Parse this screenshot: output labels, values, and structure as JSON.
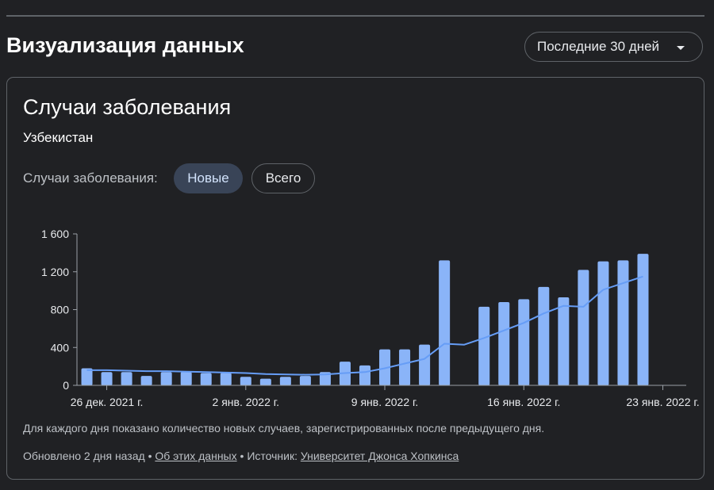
{
  "header": {
    "title": "Визуализация данных",
    "range_select": "Последние 30 дней"
  },
  "card": {
    "title": "Случаи заболевания",
    "subtitle": "Узбекистан",
    "toggle_label": "Случаи заболевания:",
    "toggle_options": [
      "Новые",
      "Всего"
    ],
    "toggle_selected": "Новые",
    "note": "Для каждого дня показано количество новых случаев, зарегистрированных после предыдущего дня.",
    "footer": {
      "updated": "Обновлено 2 дня назад",
      "sep": " • ",
      "about_link": "Об этих данных",
      "source_label": "Источник:",
      "source_link": "Университет Джонса Хопкинса"
    }
  },
  "colors": {
    "bar": "#8ab4f8",
    "line": "#669df6",
    "axis": "#9aa0a6"
  },
  "chart_data": {
    "type": "bar",
    "y_tick_labels": [
      "0",
      "400",
      "800",
      "1 200",
      "1 600"
    ],
    "y_ticks": [
      0,
      400,
      800,
      1200,
      1600
    ],
    "ylim": [
      0,
      1600
    ],
    "x_tick_labels": [
      "26 дек. 2021 г.",
      "2 янв. 2022 г.",
      "9 янв. 2022 г.",
      "16 янв. 2022 г.",
      "23 янв. 2022 г."
    ],
    "x_tick_dates": [
      "2021-12-26",
      "2022-01-02",
      "2022-01-09",
      "2022-01-16",
      "2022-01-23"
    ],
    "dates": [
      "2021-12-25",
      "2021-12-26",
      "2021-12-27",
      "2021-12-28",
      "2021-12-29",
      "2021-12-30",
      "2021-12-31",
      "2022-01-01",
      "2022-01-02",
      "2022-01-03",
      "2022-01-04",
      "2022-01-05",
      "2022-01-06",
      "2022-01-07",
      "2022-01-08",
      "2022-01-09",
      "2022-01-10",
      "2022-01-11",
      "2022-01-12",
      "2022-01-13",
      "2022-01-14",
      "2022-01-15",
      "2022-01-16",
      "2022-01-17",
      "2022-01-18",
      "2022-01-19",
      "2022-01-20",
      "2022-01-21",
      "2022-01-22"
    ],
    "series": [
      {
        "kind": "bar",
        "values": [
          180,
          140,
          140,
          100,
          140,
          140,
          130,
          130,
          90,
          70,
          90,
          100,
          140,
          250,
          210,
          380,
          380,
          430,
          1320,
          null,
          830,
          880,
          910,
          1040,
          930,
          1220,
          1310,
          1320,
          1390
        ]
      },
      {
        "kind": "line",
        "values": [
          160,
          160,
          155,
          150,
          150,
          145,
          140,
          135,
          130,
          120,
          115,
          112,
          115,
          130,
          140,
          180,
          230,
          280,
          440,
          430,
          500,
          580,
          660,
          760,
          840,
          830,
          1010,
          1080,
          1150
        ]
      }
    ]
  }
}
